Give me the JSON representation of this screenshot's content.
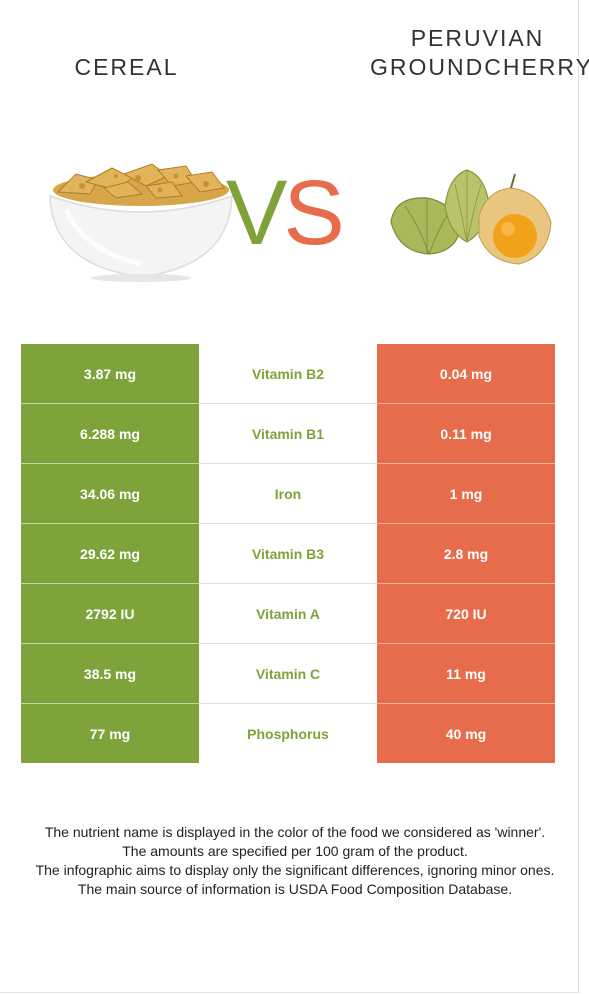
{
  "header": {
    "left_title": "CEREAL",
    "right_title_line1": "PERUVIAN",
    "right_title_line2": "GROUNDCHERRY",
    "vs_v": "V",
    "vs_s": "S"
  },
  "images": {
    "left_icon": "cereal-bowl-image",
    "right_icon": "groundcherry-image"
  },
  "colors": {
    "winner_green": "#7da33a",
    "loser_red": "#e66c4b"
  },
  "rows": [
    {
      "left": "3.87 mg",
      "nutrient": "Vitamin B2",
      "right": "0.04 mg"
    },
    {
      "left": "6.288 mg",
      "nutrient": "Vitamin B1",
      "right": "0.11 mg"
    },
    {
      "left": "34.06 mg",
      "nutrient": "Iron",
      "right": "1 mg"
    },
    {
      "left": "29.62 mg",
      "nutrient": "Vitamin B3",
      "right": "2.8 mg"
    },
    {
      "left": "2792 IU",
      "nutrient": "Vitamin A",
      "right": "720 IU"
    },
    {
      "left": "38.5 mg",
      "nutrient": "Vitamin C",
      "right": "11 mg"
    },
    {
      "left": "77 mg",
      "nutrient": "Phosphorus",
      "right": "40 mg"
    }
  ],
  "footer": {
    "line1": "The nutrient name is displayed in the color of the food we considered as 'winner'.",
    "line2": "The amounts are specified per 100 gram of the product.",
    "line3": "The infographic aims to display only the significant differences, ignoring minor ones.",
    "line4": "The main source of information is USDA Food Composition Database."
  }
}
